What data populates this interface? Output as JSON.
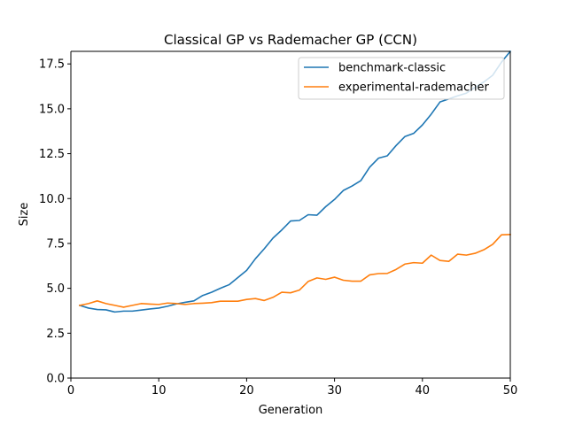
{
  "chart_data": {
    "type": "line",
    "title": "Classical GP vs Rademacher GP (CCN)",
    "xlabel": "Generation",
    "ylabel": "Size",
    "xlim": [
      0,
      50
    ],
    "ylim": [
      0,
      18.2
    ],
    "xticks": [
      0,
      10,
      20,
      30,
      40,
      50
    ],
    "xtick_labels": [
      "0",
      "10",
      "20",
      "30",
      "40",
      "50"
    ],
    "yticks": [
      0,
      2.5,
      5,
      7.5,
      10,
      12.5,
      15,
      17.5
    ],
    "ytick_labels": [
      "0.0",
      "2.5",
      "5.0",
      "7.5",
      "10.0",
      "12.5",
      "15.0",
      "17.5"
    ],
    "grid": false,
    "legend_position": "top-right",
    "x": [
      1,
      2,
      3,
      4,
      5,
      6,
      7,
      8,
      9,
      10,
      11,
      12,
      13,
      14,
      15,
      16,
      17,
      18,
      19,
      20,
      21,
      22,
      23,
      24,
      25,
      26,
      27,
      28,
      29,
      30,
      31,
      32,
      33,
      34,
      35,
      36,
      37,
      38,
      39,
      40,
      41,
      42,
      43,
      44,
      45,
      46,
      47,
      48,
      49,
      50
    ],
    "series": [
      {
        "name": "benchmark-classic",
        "color": "#1f77b4",
        "values": [
          4.05,
          3.9,
          3.82,
          3.8,
          3.68,
          3.73,
          3.73,
          3.79,
          3.85,
          3.9,
          4.0,
          4.13,
          4.22,
          4.3,
          4.6,
          4.78,
          5.0,
          5.2,
          5.6,
          6.0,
          6.65,
          7.2,
          7.8,
          8.25,
          8.75,
          8.78,
          9.1,
          9.07,
          9.55,
          9.95,
          10.45,
          10.7,
          11.0,
          11.75,
          12.25,
          12.38,
          12.95,
          13.45,
          13.63,
          14.1,
          14.7,
          15.38,
          15.55,
          15.72,
          15.87,
          16.2,
          16.5,
          16.87,
          17.6,
          18.2
        ]
      },
      {
        "name": "experimental-rademacher",
        "color": "#ff7f0e",
        "values": [
          4.05,
          4.15,
          4.3,
          4.15,
          4.05,
          3.95,
          4.05,
          4.15,
          4.12,
          4.1,
          4.18,
          4.15,
          4.1,
          4.15,
          4.17,
          4.2,
          4.28,
          4.28,
          4.28,
          4.38,
          4.43,
          4.32,
          4.5,
          4.78,
          4.75,
          4.9,
          5.38,
          5.58,
          5.5,
          5.62,
          5.45,
          5.4,
          5.4,
          5.75,
          5.82,
          5.83,
          6.05,
          6.35,
          6.43,
          6.4,
          6.85,
          6.55,
          6.5,
          6.9,
          6.85,
          6.95,
          7.15,
          7.45,
          7.98,
          8.0
        ]
      }
    ]
  }
}
